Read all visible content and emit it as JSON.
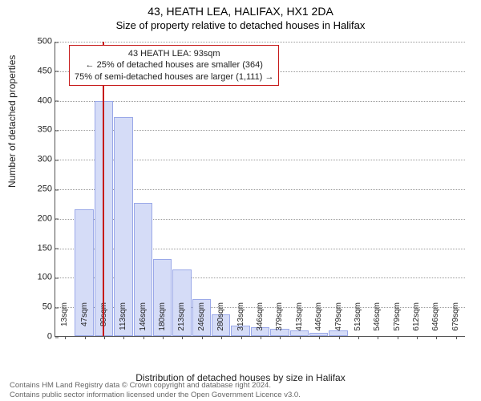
{
  "title_line1": "43, HEATH LEA, HALIFAX, HX1 2DA",
  "title_line2": "Size of property relative to detached houses in Halifax",
  "ylabel": "Number of detached properties",
  "xlabel": "Distribution of detached houses by size in Halifax",
  "footer_line1": "Contains HM Land Registry data © Crown copyright and database right 2024.",
  "footer_line2": "Contains public sector information licensed under the Open Government Licence v3.0.",
  "info_box": {
    "line1": "43 HEATH LEA: 93sqm",
    "line2": "← 25% of detached houses are smaller (364)",
    "line3": "75% of semi-detached houses are larger (1,111) →",
    "border_color": "#c61a1a",
    "fontsize": 11
  },
  "histogram": {
    "type": "histogram",
    "bar_fill": "#d5dcf7",
    "bar_border": "#9aa8e8",
    "background_color": "#ffffff",
    "grid_color": "#999999",
    "axis_color": "#555555",
    "ylim": [
      0,
      500
    ],
    "ytick_step": 50,
    "ytick_labels": [
      "0",
      "50",
      "100",
      "150",
      "200",
      "250",
      "300",
      "350",
      "400",
      "450",
      "500"
    ],
    "xtick_labels": [
      "13sqm",
      "47sqm",
      "80sqm",
      "113sqm",
      "146sqm",
      "180sqm",
      "213sqm",
      "246sqm",
      "280sqm",
      "313sqm",
      "346sqm",
      "379sqm",
      "413sqm",
      "446sqm",
      "479sqm",
      "513sqm",
      "546sqm",
      "579sqm",
      "612sqm",
      "646sqm",
      "679sqm"
    ],
    "values": [
      0,
      215,
      398,
      371,
      225,
      130,
      113,
      62,
      37,
      18,
      15,
      12,
      10,
      6,
      10,
      0,
      0,
      0,
      0,
      0,
      0
    ],
    "marker": {
      "sqm": 93,
      "x_min_sqm": 13,
      "x_max_sqm": 712,
      "color": "#c61a1a"
    },
    "title_fontsize": 14,
    "subtitle_fontsize": 13,
    "label_fontsize": 12,
    "tick_fontsize": 11
  }
}
